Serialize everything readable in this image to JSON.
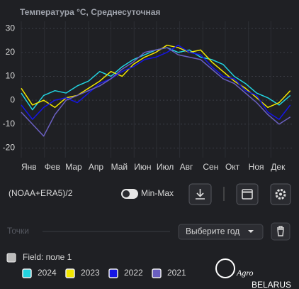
{
  "chart_data": {
    "type": "line",
    "title": "Температура °C, Среднесуточная",
    "x": [
      0,
      15,
      30,
      45,
      60,
      75,
      90,
      105,
      120,
      135,
      150,
      165,
      180,
      195,
      210,
      225,
      240,
      255,
      270,
      285,
      300,
      315,
      330,
      345,
      360
    ],
    "xlim": [
      0,
      365
    ],
    "xticks": [
      {
        "value": 0,
        "label": "Янв"
      },
      {
        "value": 31,
        "label": "Фев"
      },
      {
        "value": 59,
        "label": "Мар"
      },
      {
        "value": 90,
        "label": "Апр"
      },
      {
        "value": 120,
        "label": "Май"
      },
      {
        "value": 151,
        "label": "Июн"
      },
      {
        "value": 181,
        "label": "Июл"
      },
      {
        "value": 212,
        "label": "Авг"
      },
      {
        "value": 243,
        "label": "Сен"
      },
      {
        "value": 273,
        "label": "Окт"
      },
      {
        "value": 304,
        "label": "Ноя"
      },
      {
        "value": 334,
        "label": "Дек"
      }
    ],
    "ylim": [
      -24,
      33
    ],
    "yticks": [
      -20,
      -10,
      0,
      10,
      20,
      30
    ],
    "grid": true,
    "series": [
      {
        "name": "2024",
        "color": "#22d3e0",
        "values": [
          3,
          -4,
          2,
          4,
          3,
          6,
          8,
          12,
          10,
          14,
          17,
          19,
          21,
          22,
          20,
          21,
          18,
          17,
          15,
          10,
          7,
          3,
          1,
          -2,
          2
        ]
      },
      {
        "name": "2023",
        "color": "#f2e600",
        "values": [
          5,
          -2,
          0,
          -3,
          1,
          2,
          5,
          8,
          12,
          10,
          15,
          18,
          20,
          23,
          22,
          20,
          21,
          16,
          12,
          8,
          5,
          1,
          -3,
          -1,
          4
        ]
      },
      {
        "name": "2022",
        "color": "#1515e6",
        "values": [
          -2,
          -8,
          -3,
          0,
          1,
          -1,
          3,
          7,
          9,
          12,
          14,
          17,
          18,
          20,
          23,
          20,
          19,
          14,
          10,
          9,
          4,
          2,
          -5,
          -8,
          -2
        ]
      },
      {
        "name": "2021",
        "color": "#6a5fc0",
        "values": [
          -5,
          -10,
          -15,
          -6,
          0,
          2,
          4,
          6,
          9,
          13,
          16,
          20,
          21,
          22,
          19,
          18,
          17,
          13,
          9,
          7,
          3,
          -1,
          -6,
          -10,
          -7
        ]
      }
    ]
  },
  "toolbar": {
    "source": "(NOAA+ERA5)/2",
    "toggle": "Min-Max"
  },
  "points": {
    "label": "Точки",
    "dropdown": "Выберите год"
  },
  "field": {
    "label": "Field: поле 1"
  },
  "watermark": {
    "brand": "Agro",
    "country": "BELARUS"
  }
}
